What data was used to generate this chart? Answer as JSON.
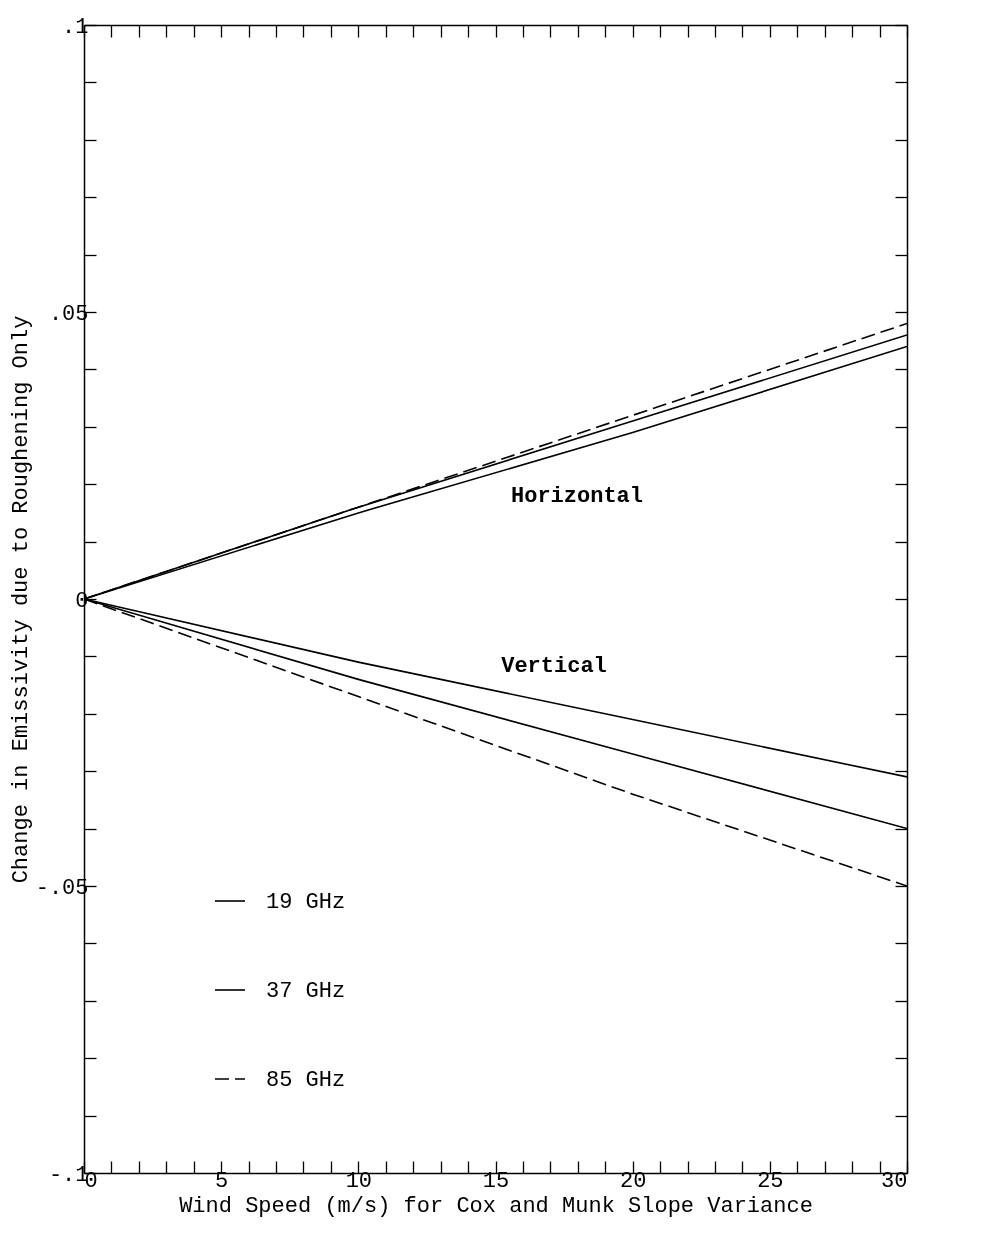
{
  "chart_data": {
    "type": "line",
    "xlabel": "Wind Speed (m/s) for Cox and Munk Slope Variance",
    "ylabel": "Change in Emissivity due to Roughening Only",
    "xlim": [
      0,
      30
    ],
    "ylim": [
      -0.1,
      0.1
    ],
    "xticks": [
      0,
      {
        "value": 1,
        "label": null
      },
      {
        "value": 2,
        "label": null
      },
      {
        "value": 3,
        "label": null
      },
      {
        "value": 4,
        "label": null
      },
      5,
      {
        "value": 6,
        "label": null
      },
      {
        "value": 7,
        "label": null
      },
      {
        "value": 8,
        "label": null
      },
      {
        "value": 9,
        "label": null
      },
      10,
      {
        "value": 11,
        "label": null
      },
      {
        "value": 12,
        "label": null
      },
      {
        "value": 13,
        "label": null
      },
      {
        "value": 14,
        "label": null
      },
      15,
      {
        "value": 16,
        "label": null
      },
      {
        "value": 17,
        "label": null
      },
      {
        "value": 18,
        "label": null
      },
      {
        "value": 19,
        "label": null
      },
      20,
      {
        "value": 21,
        "label": null
      },
      {
        "value": 22,
        "label": null
      },
      {
        "value": 23,
        "label": null
      },
      {
        "value": 24,
        "label": null
      },
      25,
      {
        "value": 26,
        "label": null
      },
      {
        "value": 27,
        "label": null
      },
      {
        "value": 28,
        "label": null
      },
      {
        "value": 29,
        "label": null
      },
      30
    ],
    "yticks": [
      {
        "value": -0.1,
        "label": "-.1"
      },
      {
        "value": -0.09,
        "label": null
      },
      {
        "value": -0.08,
        "label": null
      },
      {
        "value": -0.07,
        "label": null
      },
      {
        "value": -0.06,
        "label": null
      },
      {
        "value": -0.05,
        "label": "-.05"
      },
      {
        "value": -0.04,
        "label": null
      },
      {
        "value": -0.03,
        "label": null
      },
      {
        "value": -0.02,
        "label": null
      },
      {
        "value": -0.01,
        "label": null
      },
      0,
      {
        "value": 0.01,
        "label": null
      },
      {
        "value": 0.02,
        "label": null
      },
      {
        "value": 0.03,
        "label": null
      },
      {
        "value": 0.04,
        "label": null
      },
      {
        "value": 0.05,
        "label": ".05"
      },
      {
        "value": 0.06,
        "label": null
      },
      {
        "value": 0.07,
        "label": null
      },
      {
        "value": 0.08,
        "label": null
      },
      {
        "value": 0.09,
        "label": null
      },
      {
        "value": 0.1,
        "label": ".1"
      }
    ],
    "x": [
      0,
      10,
      20,
      30
    ],
    "legend": "bottom left",
    "series": [
      {
        "name": "19 GHz",
        "color": "#000000",
        "line_style": "solid",
        "values": [
          0,
          0.015,
          0.029,
          0.044
        ]
      },
      {
        "name": "37 GHz",
        "color": "#000000",
        "line_style": "solid",
        "values": [
          0,
          0.016,
          0.031,
          0.046
        ]
      },
      {
        "name": "85 GHz",
        "color": "#000000",
        "line_style": "dashed",
        "values": [
          0,
          0.016,
          0.032,
          0.048
        ]
      },
      {
        "color": "#000000",
        "line_style": "solid",
        "values": [
          0,
          -0.011,
          -0.021,
          -0.031
        ]
      },
      {
        "color": "#000000",
        "line_style": "solid",
        "values": [
          0,
          -0.014,
          -0.027,
          -0.04
        ]
      },
      {
        "color": "#000000",
        "line_style": "dashed",
        "values": [
          0,
          -0.017,
          -0.034,
          -0.05
        ]
      }
    ],
    "annotations": [
      "Horizontal",
      "Vertical"
    ]
  }
}
